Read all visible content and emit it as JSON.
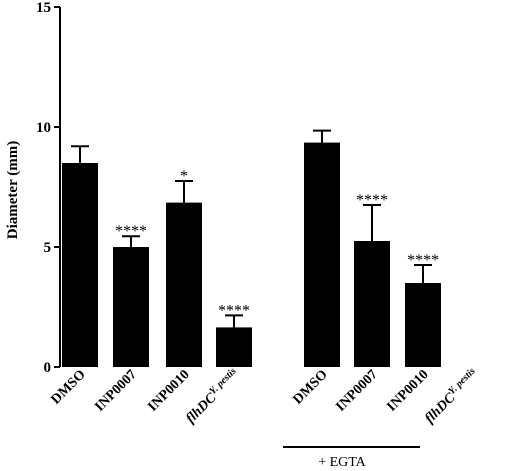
{
  "chart_data": {
    "type": "bar",
    "title": "",
    "xlabel": "",
    "ylabel": "Diameter (mm)",
    "ylim": [
      0,
      15
    ],
    "yticks": [
      "0",
      "5",
      "10",
      "15"
    ],
    "grid": false,
    "bar_color": "#000000",
    "categories": [
      {
        "name": "DMSO",
        "sup": ""
      },
      {
        "name": "INP0007",
        "sup": ""
      },
      {
        "name": "INP0010",
        "sup": ""
      },
      {
        "name": "flhDC",
        "sup": "Y. pestis",
        "italic": true
      },
      {
        "name": "DMSO",
        "sup": ""
      },
      {
        "name": "INP0007",
        "sup": ""
      },
      {
        "name": "INP0010",
        "sup": ""
      },
      {
        "name": "flhDC",
        "sup": "Y. pestis",
        "italic": true
      }
    ],
    "values": [
      8.5,
      5.0,
      6.85,
      1.65,
      9.35,
      5.25,
      3.5,
      0.0
    ],
    "errors": [
      0.7,
      0.45,
      0.9,
      0.5,
      0.5,
      1.5,
      0.75,
      0.0
    ],
    "annotations": [
      "",
      "****",
      "*",
      "****",
      "",
      "****",
      "****",
      ""
    ],
    "group_label": "+ EGTA"
  }
}
